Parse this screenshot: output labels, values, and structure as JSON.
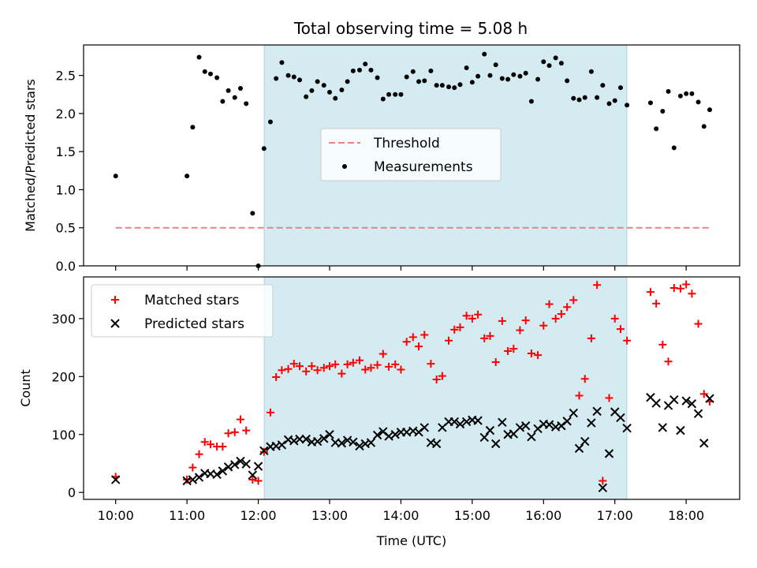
{
  "title": "Total observing time = 5.08 h",
  "colors": {
    "shade": "#d4ebf2",
    "threshold": "#f08080",
    "measurements": "#000000",
    "matched": "#ff0000",
    "predicted": "#000000"
  },
  "chart_data": [
    {
      "type": "scatter",
      "ylabel": "Matched/Predicted stars",
      "xlim": [
        9.55,
        18.75
      ],
      "ylim": [
        0,
        2.9
      ],
      "yticks": [
        0.0,
        0.5,
        1.0,
        1.5,
        2.0,
        2.5
      ],
      "ytick_labels": [
        "0.0",
        "0.5",
        "1.0",
        "1.5",
        "2.0",
        "2.5"
      ],
      "shaded_interval": [
        12.083,
        17.167
      ],
      "legend": {
        "placement": "center",
        "entries": [
          "Threshold",
          "Measurements"
        ]
      },
      "threshold": {
        "name": "Threshold",
        "value": 0.5,
        "x_range": [
          10.0,
          18.35
        ]
      },
      "series": [
        {
          "name": "Measurements",
          "x": [
            10.0,
            11.0,
            11.08,
            11.17,
            11.25,
            11.33,
            11.42,
            11.5,
            11.58,
            11.67,
            11.75,
            11.83,
            11.92,
            12.0,
            12.08,
            12.17,
            12.25,
            12.33,
            12.42,
            12.5,
            12.58,
            12.67,
            12.75,
            12.83,
            12.92,
            13.0,
            13.08,
            13.17,
            13.25,
            13.33,
            13.42,
            13.5,
            13.58,
            13.67,
            13.75,
            13.83,
            13.92,
            14.0,
            14.08,
            14.17,
            14.25,
            14.33,
            14.42,
            14.5,
            14.58,
            14.67,
            14.75,
            14.83,
            14.92,
            15.0,
            15.08,
            15.17,
            15.25,
            15.33,
            15.42,
            15.5,
            15.58,
            15.67,
            15.75,
            15.83,
            15.92,
            16.0,
            16.08,
            16.17,
            16.25,
            16.33,
            16.42,
            16.5,
            16.58,
            16.67,
            16.75,
            16.83,
            16.92,
            17.0,
            17.08,
            17.17,
            17.5,
            17.58,
            17.67,
            17.75,
            17.83,
            17.92,
            18.0,
            18.08,
            18.17,
            18.25,
            18.33
          ],
          "y": [
            1.18,
            1.18,
            1.82,
            2.74,
            2.55,
            2.52,
            2.47,
            2.16,
            2.3,
            2.21,
            2.33,
            2.13,
            0.69,
            0.0,
            1.54,
            1.89,
            2.46,
            2.67,
            2.5,
            2.48,
            2.44,
            2.22,
            2.3,
            2.42,
            2.37,
            2.28,
            2.2,
            2.31,
            2.42,
            2.56,
            2.57,
            2.65,
            2.57,
            2.47,
            2.19,
            2.25,
            2.25,
            2.25,
            2.48,
            2.55,
            2.42,
            2.43,
            2.56,
            2.37,
            2.37,
            2.35,
            2.34,
            2.38,
            2.6,
            2.41,
            2.49,
            2.78,
            2.5,
            2.64,
            2.46,
            2.45,
            2.51,
            2.49,
            2.53,
            2.16,
            2.45,
            2.68,
            2.63,
            2.73,
            2.66,
            2.43,
            2.2,
            2.18,
            2.21,
            2.55,
            2.21,
            2.37,
            2.13,
            2.17,
            2.34,
            2.11,
            2.14,
            1.8,
            2.03,
            2.29,
            1.55,
            2.23,
            2.26,
            2.26,
            2.15,
            1.83,
            2.05
          ]
        }
      ]
    },
    {
      "type": "scatter",
      "xlabel": "Time (UTC)",
      "ylabel": "Count",
      "xlim": [
        9.55,
        18.75
      ],
      "ylim": [
        -12,
        372
      ],
      "yticks": [
        0,
        100,
        200,
        300
      ],
      "ytick_labels": [
        "0",
        "100",
        "200",
        "300"
      ],
      "xticks": [
        10,
        11,
        12,
        13,
        14,
        15,
        16,
        17,
        18
      ],
      "xtick_labels": [
        "10:00",
        "11:00",
        "12:00",
        "13:00",
        "14:00",
        "15:00",
        "16:00",
        "17:00",
        "18:00"
      ],
      "shaded_interval": [
        12.083,
        17.167
      ],
      "legend": {
        "placement": "upper-left",
        "entries": [
          "Matched stars",
          "Predicted stars"
        ]
      },
      "series": [
        {
          "name": "Matched stars",
          "x": [
            10.0,
            11.0,
            11.08,
            11.17,
            11.25,
            11.33,
            11.42,
            11.5,
            11.58,
            11.67,
            11.75,
            11.83,
            11.92,
            12.0,
            12.08,
            12.17,
            12.25,
            12.33,
            12.42,
            12.5,
            12.58,
            12.67,
            12.75,
            12.83,
            12.92,
            13.0,
            13.08,
            13.17,
            13.25,
            13.33,
            13.42,
            13.5,
            13.58,
            13.67,
            13.75,
            13.83,
            13.92,
            14.0,
            14.08,
            14.17,
            14.25,
            14.33,
            14.42,
            14.5,
            14.58,
            14.67,
            14.75,
            14.83,
            14.92,
            15.0,
            15.08,
            15.17,
            15.25,
            15.33,
            15.42,
            15.5,
            15.58,
            15.67,
            15.75,
            15.83,
            15.92,
            16.0,
            16.08,
            16.17,
            16.25,
            16.33,
            16.42,
            16.5,
            16.58,
            16.67,
            16.75,
            16.83,
            16.92,
            17.0,
            17.08,
            17.17,
            17.5,
            17.58,
            17.67,
            17.75,
            17.83,
            17.92,
            18.0,
            18.08,
            18.17,
            18.25,
            18.33
          ],
          "y": [
            27,
            22,
            43,
            66,
            87,
            83,
            79,
            79,
            102,
            104,
            126,
            107,
            22,
            20,
            70,
            138,
            199,
            211,
            213,
            222,
            218,
            209,
            218,
            211,
            215,
            218,
            221,
            205,
            221,
            224,
            228,
            212,
            215,
            220,
            239,
            217,
            221,
            212,
            260,
            268,
            252,
            272,
            222,
            195,
            201,
            262,
            281,
            285,
            305,
            300,
            307,
            266,
            270,
            225,
            296,
            244,
            248,
            280,
            297,
            240,
            237,
            288,
            325,
            300,
            308,
            320,
            332,
            167,
            196,
            266,
            358,
            20,
            163,
            300,
            282,
            262,
            346,
            326,
            255,
            226,
            353,
            352,
            359,
            343,
            291,
            170,
            157
          ]
        },
        {
          "name": "Predicted stars",
          "x": [
            10.0,
            11.0,
            11.08,
            11.17,
            11.25,
            11.33,
            11.42,
            11.5,
            11.58,
            11.67,
            11.75,
            11.83,
            11.92,
            12.0,
            12.08,
            12.17,
            12.25,
            12.33,
            12.42,
            12.5,
            12.58,
            12.67,
            12.75,
            12.83,
            12.92,
            13.0,
            13.08,
            13.17,
            13.25,
            13.33,
            13.42,
            13.5,
            13.58,
            13.67,
            13.75,
            13.83,
            13.92,
            14.0,
            14.08,
            14.17,
            14.25,
            14.33,
            14.42,
            14.5,
            14.58,
            14.67,
            14.75,
            14.83,
            14.92,
            15.0,
            15.08,
            15.17,
            15.25,
            15.33,
            15.42,
            15.5,
            15.58,
            15.67,
            15.75,
            15.83,
            15.92,
            16.0,
            16.08,
            16.17,
            16.25,
            16.33,
            16.42,
            16.5,
            16.58,
            16.67,
            16.75,
            16.83,
            16.92,
            17.0,
            17.08,
            17.17,
            17.5,
            17.58,
            17.67,
            17.75,
            17.83,
            17.92,
            18.0,
            18.08,
            18.17,
            18.25,
            18.33
          ],
          "y": [
            22,
            20,
            22,
            26,
            33,
            32,
            31,
            37,
            44,
            48,
            54,
            49,
            30,
            45,
            72,
            79,
            80,
            82,
            91,
            89,
            92,
            92,
            87,
            88,
            93,
            100,
            86,
            85,
            90,
            87,
            80,
            84,
            86,
            99,
            105,
            97,
            100,
            104,
            104,
            106,
            104,
            112,
            86,
            84,
            112,
            122,
            122,
            118,
            122,
            125,
            124,
            95,
            107,
            84,
            121,
            100,
            101,
            112,
            115,
            96,
            110,
            118,
            117,
            113,
            115,
            123,
            137,
            76,
            88,
            120,
            140,
            8,
            67,
            139,
            129,
            111,
            164,
            154,
            112,
            150,
            160,
            107,
            158,
            153,
            136,
            85,
            162
          ]
        }
      ]
    }
  ]
}
